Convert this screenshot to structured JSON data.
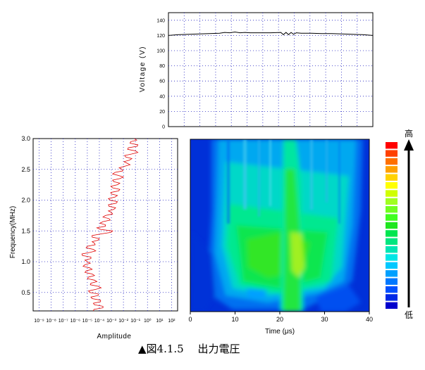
{
  "caption": "▲図4.1.5　 出力電圧",
  "chart_data": [
    {
      "type": "line",
      "ylabel": "Voltage (V)",
      "ylim": [
        0,
        150
      ],
      "xlim": [
        0,
        40
      ],
      "yticks": [
        "0",
        "20",
        "40",
        "60",
        "80",
        "100",
        "120",
        "140"
      ],
      "grid": true,
      "series": [
        {
          "x": [
            0,
            2,
            4,
            6,
            8,
            10,
            11,
            12,
            13,
            14,
            15,
            16,
            18,
            20,
            22,
            22.5,
            23,
            23.5,
            24,
            24.5,
            25,
            26,
            28,
            30,
            32,
            34,
            36,
            38,
            40
          ],
          "y": [
            120,
            121,
            121.5,
            122,
            122.5,
            123,
            124,
            123.5,
            124.5,
            123.5,
            124,
            123.5,
            123.5,
            123.5,
            124,
            121,
            124,
            121,
            124,
            121.5,
            123.5,
            123,
            123,
            122.5,
            122.5,
            122,
            121.5,
            121,
            120
          ]
        }
      ]
    },
    {
      "type": "line",
      "xlabel": "Amplitude",
      "ylabel": "Frequency(MHz)",
      "ylim": [
        0.2,
        3.0
      ],
      "yticks": [
        "0.5",
        "1.0",
        "1.5",
        "2.0",
        "2.5",
        "3.0"
      ],
      "xticks": [
        "10⁻⁹",
        "10⁻⁸",
        "10⁻⁷",
        "10⁻⁶",
        "10⁻⁵",
        "10⁻⁴",
        "10⁻³",
        "10⁻²",
        "10⁻¹",
        "10⁰",
        "10¹",
        "10²"
      ],
      "grid": true,
      "series": [
        {
          "freq": [
            0.2,
            0.25,
            0.3,
            0.35,
            0.4,
            0.45,
            0.5,
            0.55,
            0.6,
            0.65,
            0.7,
            0.75,
            0.8,
            0.85,
            0.9,
            0.95,
            1.0,
            1.05,
            1.1,
            1.15,
            1.2,
            1.25,
            1.3,
            1.35,
            1.4,
            1.45,
            1.5,
            1.55,
            1.6,
            1.65,
            1.7,
            1.75,
            1.8,
            1.85,
            1.9,
            1.95,
            2.0,
            2.05,
            2.1,
            2.15,
            2.2,
            2.25,
            2.3,
            2.35,
            2.4,
            2.45,
            2.5,
            2.55,
            2.6,
            2.65,
            2.7,
            2.75,
            2.8,
            2.85,
            2.9,
            2.95,
            3.0
          ],
          "log_amp": [
            -4.0,
            -3.2,
            -3.9,
            -3.4,
            -4.1,
            -3.6,
            -4.3,
            -3.8,
            -3.6,
            -4.2,
            -3.9,
            -4.4,
            -4.1,
            -4.6,
            -4.3,
            -4.7,
            -4.5,
            -4.2,
            -4.9,
            -4.3,
            -4.0,
            -4.5,
            -3.9,
            -3.6,
            -4.1,
            -3.4,
            -2.4,
            -3.7,
            -3.0,
            -3.2,
            -2.7,
            -3.0,
            -2.5,
            -2.3,
            -2.7,
            -2.1,
            -2.6,
            -2.2,
            -2.5,
            -1.9,
            -2.4,
            -2.0,
            -2.3,
            -1.8,
            -1.9,
            -2.2,
            -1.6,
            -1.4,
            -1.2,
            -1.0,
            -1.3,
            -0.8,
            -0.5,
            -1.1,
            -0.3,
            -0.9,
            -0.6
          ]
        }
      ]
    },
    {
      "type": "heatmap",
      "xlabel": "Time (μs)",
      "xlim": [
        0,
        40
      ],
      "ylim": [
        0.2,
        3.0
      ],
      "xticks": [
        "0",
        "10",
        "20",
        "30",
        "40"
      ],
      "colorbar": {
        "high_label": "高",
        "low_label": "低",
        "colors": [
          "#0000cc",
          "#0028e6",
          "#0050ff",
          "#0078ff",
          "#00a0ff",
          "#00c8ff",
          "#00e6e6",
          "#00e6b4",
          "#00e680",
          "#00e650",
          "#20e620",
          "#40ff20",
          "#70ff20",
          "#a0ff20",
          "#d0ff00",
          "#ffff00",
          "#ffd200",
          "#ffa000",
          "#ff7000",
          "#ff4000",
          "#ff0000"
        ]
      }
    }
  ]
}
